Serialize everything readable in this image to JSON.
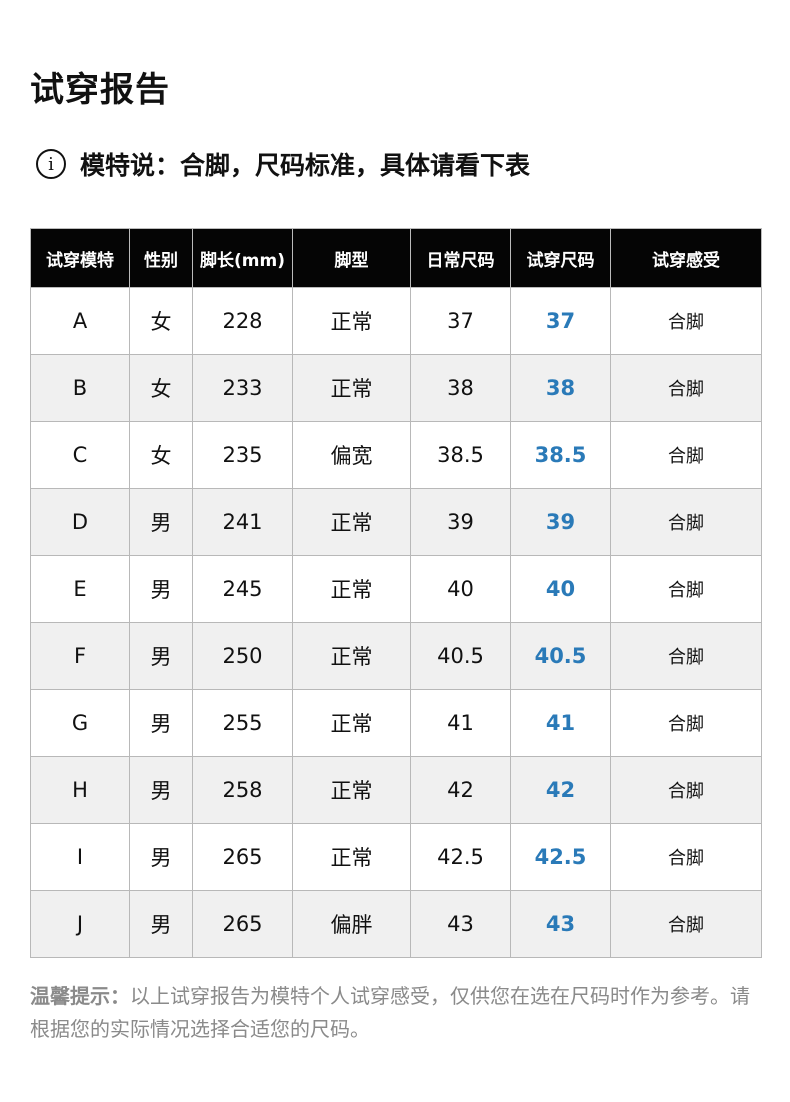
{
  "title": "试穿报告",
  "note": {
    "icon": "info-icon",
    "text": "模特说：合脚，尺码标准，具体请看下表"
  },
  "table": {
    "headers": [
      "试穿模特",
      "性别",
      "脚长(mm)",
      "脚型",
      "日常尺码",
      "试穿尺码",
      "试穿感受"
    ],
    "rows": [
      [
        "A",
        "女",
        "228",
        "正常",
        "37",
        "37",
        "合脚"
      ],
      [
        "B",
        "女",
        "233",
        "正常",
        "38",
        "38",
        "合脚"
      ],
      [
        "C",
        "女",
        "235",
        "偏宽",
        "38.5",
        "38.5",
        "合脚"
      ],
      [
        "D",
        "男",
        "241",
        "正常",
        "39",
        "39",
        "合脚"
      ],
      [
        "E",
        "男",
        "245",
        "正常",
        "40",
        "40",
        "合脚"
      ],
      [
        "F",
        "男",
        "250",
        "正常",
        "40.5",
        "40.5",
        "合脚"
      ],
      [
        "G",
        "男",
        "255",
        "正常",
        "41",
        "41",
        "合脚"
      ],
      [
        "H",
        "男",
        "258",
        "正常",
        "42",
        "42",
        "合脚"
      ],
      [
        "I",
        "男",
        "265",
        "正常",
        "42.5",
        "42.5",
        "合脚"
      ],
      [
        "J",
        "男",
        "265",
        "偏胖",
        "43",
        "43",
        "合脚"
      ]
    ]
  },
  "tip": {
    "label": "温馨提示：",
    "text": "以上试穿报告为模特个人试穿感受，仅供您在选在尺码时作为参考。请根据您的实际情况选择合适您的尺码。"
  },
  "colors": {
    "trial_size": "#2a7ab8",
    "header_bg": "#050505",
    "alt_row": "#f0f0f0"
  }
}
